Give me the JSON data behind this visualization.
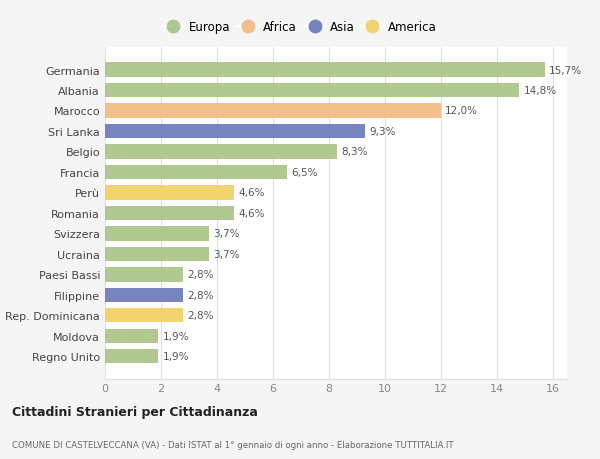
{
  "categories": [
    "Germania",
    "Albania",
    "Marocco",
    "Sri Lanka",
    "Belgio",
    "Francia",
    "Perù",
    "Romania",
    "Svizzera",
    "Ucraina",
    "Paesi Bassi",
    "Filippine",
    "Rep. Dominicana",
    "Moldova",
    "Regno Unito"
  ],
  "values": [
    15.7,
    14.8,
    12.0,
    9.3,
    8.3,
    6.5,
    4.6,
    4.6,
    3.7,
    3.7,
    2.8,
    2.8,
    2.8,
    1.9,
    1.9
  ],
  "labels": [
    "15,7%",
    "14,8%",
    "12,0%",
    "9,3%",
    "8,3%",
    "6,5%",
    "4,6%",
    "4,6%",
    "3,7%",
    "3,7%",
    "2,8%",
    "2,8%",
    "2,8%",
    "1,9%",
    "1,9%"
  ],
  "continents": [
    "Europa",
    "Europa",
    "Africa",
    "Asia",
    "Europa",
    "Europa",
    "America",
    "Europa",
    "Europa",
    "Europa",
    "Europa",
    "Asia",
    "America",
    "Europa",
    "Europa"
  ],
  "colors": {
    "Europa": "#a8c484",
    "Africa": "#f2b87e",
    "Asia": "#6878b8",
    "America": "#f0d060"
  },
  "legend_order": [
    "Europa",
    "Africa",
    "Asia",
    "America"
  ],
  "title": "Cittadini Stranieri per Cittadinanza",
  "subtitle": "COMUNE DI CASTELVECCANA (VA) - Dati ISTAT al 1° gennaio di ogni anno - Elaborazione TUTTITALIA.IT",
  "xlim": [
    0,
    16.5
  ],
  "xticks": [
    0,
    2,
    4,
    6,
    8,
    10,
    12,
    14,
    16
  ],
  "background_color": "#f5f5f5",
  "plot_bg_color": "#ffffff"
}
